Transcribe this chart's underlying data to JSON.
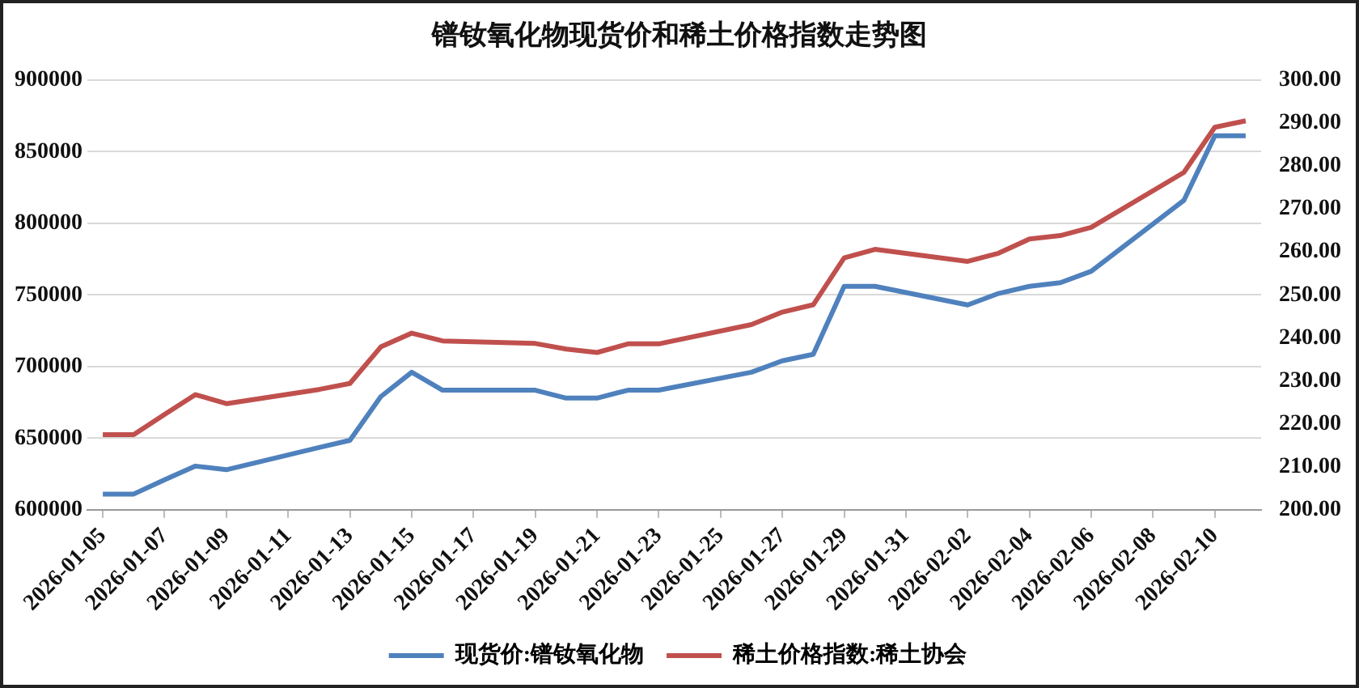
{
  "chart_data": {
    "type": "line",
    "title": "镨钕氧化物现货价和稀土价格指数走势图",
    "x": [
      "2026-01-05",
      "2026-01-06",
      "2026-01-07",
      "2026-01-08",
      "2026-01-09",
      "2026-01-12",
      "2026-01-13",
      "2026-01-14",
      "2026-01-15",
      "2026-01-16",
      "2026-01-19",
      "2026-01-20",
      "2026-01-21",
      "2026-01-22",
      "2026-01-23",
      "2026-01-26",
      "2026-01-27",
      "2026-01-28",
      "2026-01-29",
      "2026-01-30",
      "2026-02-02",
      "2026-02-03",
      "2026-02-04",
      "2026-02-05",
      "2026-02-06",
      "2026-02-09",
      "2026-02-10",
      "2026-02-11"
    ],
    "series": [
      {
        "name": "现货价:镨钕氧化物",
        "color": "#4f81bd",
        "values": [
          611000,
          611000,
          621000,
          630500,
          628000,
          643500,
          648500,
          679000,
          696000,
          683500,
          683500,
          678000,
          678000,
          683500,
          683500,
          696000,
          704000,
          708500,
          756000,
          756000,
          743000,
          751000,
          756000,
          758500,
          766500,
          816000,
          861000,
          861000
        ]
      },
      {
        "name": "稀土价格指数:稀土协会",
        "color": "#c0504d",
        "axis": "y2",
        "values": [
          217.5,
          217.5,
          222.2,
          226.8,
          224.7,
          228.0,
          229.4,
          237.9,
          241.1,
          239.3,
          238.7,
          237.4,
          236.6,
          238.6,
          238.6,
          243.1,
          246.0,
          247.7,
          258.6,
          260.6,
          257.8,
          259.7,
          263.0,
          263.8,
          265.7,
          278.5,
          289.0,
          290.5
        ]
      }
    ],
    "xlim": [
      "2026-01-04T12:00",
      "2026-02-11T12:00"
    ],
    "xticks": [
      "2026-01-05",
      "2026-01-07",
      "2026-01-09",
      "2026-01-11",
      "2026-01-13",
      "2026-01-15",
      "2026-01-17",
      "2026-01-19",
      "2026-01-21",
      "2026-01-23",
      "2026-01-25",
      "2026-01-27",
      "2026-01-29",
      "2026-01-31",
      "2026-02-02",
      "2026-02-04",
      "2026-02-06",
      "2026-02-08",
      "2026-02-10"
    ],
    "ylim": [
      600000,
      900000
    ],
    "yticks": [
      600000,
      650000,
      700000,
      750000,
      800000,
      850000,
      900000
    ],
    "y2lim": [
      200,
      300
    ],
    "y2ticks": [
      {
        "value": 200,
        "label": "200.00"
      },
      {
        "value": 210,
        "label": "210.00"
      },
      {
        "value": 220,
        "label": "220.00"
      },
      {
        "value": 230,
        "label": "230.00"
      },
      {
        "value": 240,
        "label": "240.00"
      },
      {
        "value": 250,
        "label": "250.00"
      },
      {
        "value": 260,
        "label": "260.00"
      },
      {
        "value": 270,
        "label": "270.00"
      },
      {
        "value": 280,
        "label": "280.00"
      },
      {
        "value": 290,
        "label": "290.00"
      },
      {
        "value": 300,
        "label": "300.00"
      }
    ],
    "grid": "y",
    "legend": "bottom",
    "marker": "none",
    "line_style": "solid"
  }
}
